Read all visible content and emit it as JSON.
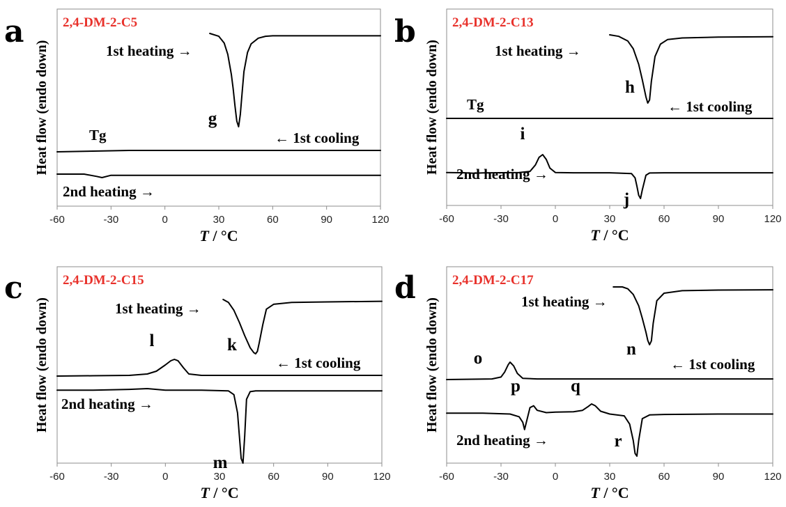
{
  "chart_data": [
    {
      "panel": "a",
      "type": "line",
      "title": "2,4-DM-2-C5",
      "xlabel_italic": "T",
      "xlabel_unit": " / °C",
      "ylabel": "Heat flow (endo down)",
      "xlim": [
        -60,
        120
      ],
      "xticks": [
        -60,
        -30,
        0,
        30,
        60,
        90,
        120
      ],
      "grid": false,
      "series": [
        {
          "name": "1st heating",
          "x": [
            25,
            30,
            33,
            35,
            37,
            38,
            39,
            40,
            41,
            42,
            43,
            44,
            46,
            48,
            52,
            56,
            60,
            80,
            100,
            120
          ],
          "y": [
            1.0,
            0.97,
            0.9,
            0.78,
            0.57,
            0.42,
            0.24,
            0.08,
            0.02,
            0.15,
            0.38,
            0.6,
            0.8,
            0.89,
            0.95,
            0.97,
            0.975,
            0.975,
            0.975,
            0.975
          ]
        },
        {
          "name": "1st cooling",
          "x": [
            -60,
            -40,
            -20,
            0,
            20,
            40,
            60,
            80,
            100,
            120
          ],
          "y": [
            0.5,
            0.505,
            0.51,
            0.51,
            0.51,
            0.51,
            0.51,
            0.51,
            0.51,
            0.51
          ]
        },
        {
          "name": "2nd heating",
          "x": [
            -60,
            -45,
            -38,
            -35,
            -30,
            -10,
            20,
            60,
            120
          ],
          "y": [
            0.5,
            0.5,
            0.49,
            0.485,
            0.495,
            0.495,
            0.495,
            0.495,
            0.495
          ]
        }
      ],
      "labels": {
        "heat1": "1st heating →",
        "cool1": "← 1st cooling",
        "heat2": "2nd heating →",
        "tg": "Tg"
      },
      "peak_labels": [
        {
          "label": "g",
          "x": 40
        }
      ]
    },
    {
      "panel": "b",
      "type": "line",
      "title": "2,4-DM-2-C13",
      "xlabel_italic": "T",
      "xlabel_unit": " / °C",
      "ylabel": "Heat flow (endo down)",
      "xlim": [
        -60,
        120
      ],
      "xticks": [
        -60,
        -30,
        0,
        30,
        60,
        90,
        120
      ],
      "grid": false,
      "series": [
        {
          "name": "1st heating",
          "x": [
            30,
            35,
            40,
            43,
            46,
            48,
            50,
            51,
            52,
            53,
            55,
            58,
            62,
            70,
            90,
            120
          ],
          "y": [
            1.0,
            0.98,
            0.92,
            0.82,
            0.62,
            0.42,
            0.2,
            0.12,
            0.16,
            0.4,
            0.72,
            0.88,
            0.94,
            0.96,
            0.97,
            0.975
          ]
        },
        {
          "name": "1st cooling",
          "x": [
            -60,
            -45,
            -30,
            0,
            30,
            60,
            90,
            120
          ],
          "y": [
            0.5,
            0.505,
            0.505,
            0.505,
            0.505,
            0.505,
            0.505,
            0.505
          ]
        },
        {
          "name": "2nd heating",
          "x": [
            -60,
            -50,
            -45,
            -40,
            -20,
            -14,
            -11,
            -9,
            -7,
            -5,
            -3,
            0,
            10,
            30,
            42,
            44,
            45,
            46,
            47,
            48,
            50,
            52,
            60,
            90,
            120
          ],
          "y": [
            0.5,
            0.495,
            0.487,
            0.493,
            0.5,
            0.52,
            0.64,
            0.78,
            0.83,
            0.74,
            0.58,
            0.5,
            0.495,
            0.495,
            0.48,
            0.4,
            0.25,
            0.08,
            0.02,
            0.18,
            0.45,
            0.49,
            0.495,
            0.495,
            0.495
          ]
        }
      ],
      "labels": {
        "heat1": "1st heating →",
        "cool1": "← 1st cooling",
        "heat2": "2nd heating →",
        "tg": "Tg"
      },
      "peak_labels": [
        {
          "label": "h",
          "x": 51
        },
        {
          "label": "i",
          "x": -8
        },
        {
          "label": "j",
          "x": 47
        }
      ]
    },
    {
      "panel": "c",
      "type": "line",
      "title": "2,4-DM-2-C15",
      "xlabel_italic": "T",
      "xlabel_unit": " / °C",
      "ylabel": "Heat flow (endo down)",
      "xlim": [
        -60,
        120
      ],
      "xticks": [
        -60,
        -30,
        0,
        30,
        60,
        90,
        120
      ],
      "grid": false,
      "series": [
        {
          "name": "1st heating",
          "x": [
            32,
            35,
            38,
            41,
            44,
            47,
            49,
            50,
            51,
            52,
            54,
            56,
            60,
            70,
            90,
            120
          ],
          "y": [
            1.0,
            0.95,
            0.82,
            0.62,
            0.4,
            0.2,
            0.12,
            0.1,
            0.14,
            0.28,
            0.58,
            0.84,
            0.92,
            0.95,
            0.96,
            0.97
          ]
        },
        {
          "name": "1st cooling",
          "x": [
            -60,
            -40,
            -20,
            -10,
            -5,
            0,
            3,
            5,
            7,
            10,
            13,
            20,
            40,
            60,
            90,
            120
          ],
          "y": [
            0.5,
            0.505,
            0.51,
            0.53,
            0.57,
            0.66,
            0.72,
            0.74,
            0.72,
            0.62,
            0.53,
            0.51,
            0.51,
            0.51,
            0.51,
            0.51
          ]
        },
        {
          "name": "2nd heating",
          "x": [
            -60,
            -40,
            -20,
            -10,
            0,
            20,
            35,
            38,
            40,
            41,
            42,
            43,
            44,
            45,
            47,
            50,
            60,
            90,
            120
          ],
          "y": [
            0.5,
            0.5,
            0.505,
            0.51,
            0.5,
            0.5,
            0.495,
            0.47,
            0.35,
            0.2,
            0.05,
            0.02,
            0.2,
            0.44,
            0.49,
            0.495,
            0.495,
            0.495,
            0.495
          ]
        }
      ],
      "labels": {
        "heat1": "1st heating →",
        "cool1": "← 1st cooling",
        "heat2": "2nd heating →"
      },
      "peak_labels": [
        {
          "label": "k",
          "x": 50
        },
        {
          "label": "l",
          "x": 5
        },
        {
          "label": "m",
          "x": 43
        }
      ]
    },
    {
      "panel": "d",
      "type": "line",
      "title": "2,4-DM-2-C17",
      "xlabel_italic": "T",
      "xlabel_unit": " / °C",
      "ylabel": "Heat flow (endo down)",
      "xlim": [
        -60,
        120
      ],
      "xticks": [
        -60,
        -30,
        0,
        30,
        60,
        90,
        120
      ],
      "grid": false,
      "series": [
        {
          "name": "1st heating",
          "x": [
            32,
            37,
            40,
            43,
            46,
            48,
            50,
            51,
            52,
            53,
            54,
            56,
            60,
            70,
            90,
            120
          ],
          "y": [
            1.0,
            1.0,
            0.97,
            0.88,
            0.7,
            0.5,
            0.28,
            0.15,
            0.08,
            0.14,
            0.42,
            0.78,
            0.9,
            0.94,
            0.95,
            0.955
          ]
        },
        {
          "name": "1st cooling",
          "x": [
            -60,
            -35,
            -30,
            -28,
            -26,
            -25,
            -23,
            -21,
            -18,
            -10,
            10,
            40,
            90,
            120
          ],
          "y": [
            0.5,
            0.505,
            0.52,
            0.56,
            0.62,
            0.64,
            0.61,
            0.55,
            0.51,
            0.505,
            0.505,
            0.505,
            0.505,
            0.505
          ]
        },
        {
          "name": "2nd heating",
          "x": [
            -60,
            -40,
            -25,
            -20,
            -18,
            -17,
            -16,
            -14,
            -12,
            -10,
            -5,
            0,
            10,
            15,
            18,
            20,
            22,
            25,
            30,
            38,
            41,
            43,
            44,
            45,
            46,
            48,
            52,
            60,
            90,
            120
          ],
          "y": [
            0.5,
            0.5,
            0.49,
            0.46,
            0.4,
            0.32,
            0.4,
            0.56,
            0.58,
            0.53,
            0.505,
            0.51,
            0.515,
            0.53,
            0.57,
            0.6,
            0.58,
            0.52,
            0.49,
            0.47,
            0.38,
            0.2,
            0.06,
            0.03,
            0.2,
            0.44,
            0.48,
            0.485,
            0.49,
            0.49
          ]
        }
      ],
      "labels": {
        "heat1": "1st heating →",
        "cool1": "← 1st cooling",
        "heat2": "2nd heating →"
      },
      "peak_labels": [
        {
          "label": "n",
          "x": 52
        },
        {
          "label": "o",
          "x": -25
        },
        {
          "label": "p",
          "x": -17
        },
        {
          "label": "q",
          "x": 20
        },
        {
          "label": "r",
          "x": 45
        }
      ]
    }
  ]
}
